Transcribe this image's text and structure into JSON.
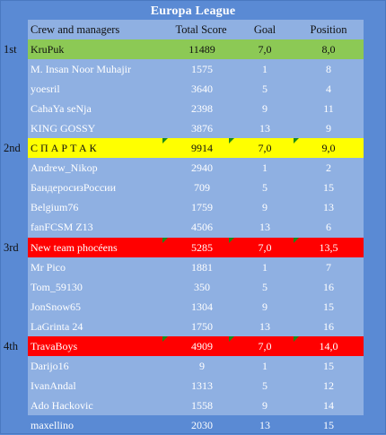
{
  "title": "Europa League",
  "header": {
    "name": "Crew and managers",
    "score": "Total Score",
    "goal": "Goal",
    "position": "Position"
  },
  "groups": [
    {
      "rank": "1st",
      "color": "#8cc955",
      "leader": {
        "name": "KruPuk",
        "score": "11489",
        "goal": "7,0",
        "position": "8,0"
      },
      "members": [
        {
          "name": "M. Insan Noor Muhajir",
          "score": "1575",
          "goal": "1",
          "position": "8"
        },
        {
          "name": "yoesril",
          "score": "3640",
          "goal": "5",
          "position": "4"
        },
        {
          "name": "CahaYa seNja",
          "score": "2398",
          "goal": "9",
          "position": "11"
        },
        {
          "name": "KING GOSSY",
          "score": "3876",
          "goal": "13",
          "position": "9"
        }
      ]
    },
    {
      "rank": "2nd",
      "color": "#ffff00",
      "leader": {
        "name": "СПАРТАК",
        "score": "9914",
        "goal": "7,0",
        "position": "9,0"
      },
      "members": [
        {
          "name": "Andrew_Nikop",
          "score": "2940",
          "goal": "1",
          "position": "2"
        },
        {
          "name": "БандеросизРоссии",
          "score": "709",
          "goal": "5",
          "position": "15"
        },
        {
          "name": "Belgium76",
          "score": "1759",
          "goal": "9",
          "position": "13"
        },
        {
          "name": "fanFCSM Z13",
          "score": "4506",
          "goal": "13",
          "position": "6"
        }
      ]
    },
    {
      "rank": "3rd",
      "color": "#ff0000",
      "leader": {
        "name": "New team phocéens",
        "score": "5285",
        "goal": "7,0",
        "position": "13,5"
      },
      "members": [
        {
          "name": "Mr Pico",
          "score": "1881",
          "goal": "1",
          "position": "7"
        },
        {
          "name": "Tom_59130",
          "score": "350",
          "goal": "5",
          "position": "16"
        },
        {
          "name": "JonSnow65",
          "score": "1304",
          "goal": "9",
          "position": "15"
        },
        {
          "name": "LaGrinta 24",
          "score": "1750",
          "goal": "13",
          "position": "16"
        }
      ]
    },
    {
      "rank": "4th",
      "color": "#ff0000",
      "leader": {
        "name": "TravaBoys",
        "score": "4909",
        "goal": "7,0",
        "position": "14,0"
      },
      "members": [
        {
          "name": "Darijo16",
          "score": "9",
          "goal": "1",
          "position": "15"
        },
        {
          "name": "IvanAndal",
          "score": "1313",
          "goal": "5",
          "position": "12"
        },
        {
          "name": "Ado Hackovic",
          "score": "1558",
          "goal": "9",
          "position": "14"
        },
        {
          "name": "maxellino",
          "score": "2030",
          "goal": "13",
          "position": "15"
        }
      ]
    }
  ]
}
